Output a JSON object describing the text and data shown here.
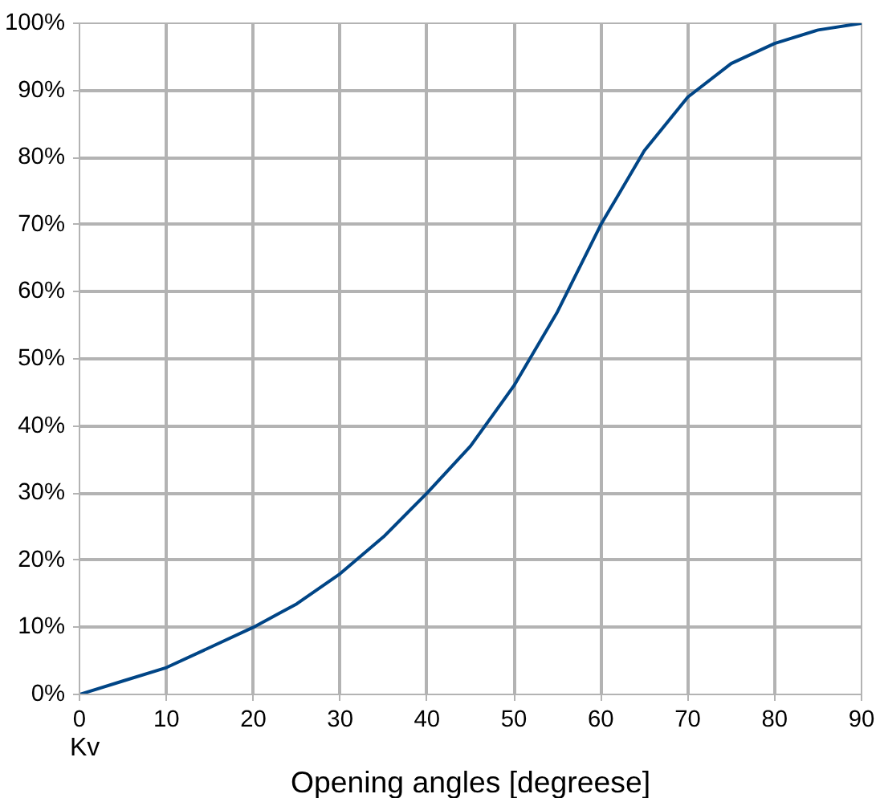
{
  "chart_data": {
    "type": "line",
    "xlabel": "Opening angles [degreese]",
    "annotations": [
      "Kv"
    ],
    "x": [
      0,
      5,
      10,
      15,
      20,
      25,
      30,
      35,
      40,
      45,
      50,
      55,
      60,
      65,
      70,
      75,
      80,
      85,
      90
    ],
    "series": [
      {
        "color": "#004586",
        "values": [
          0,
          2,
          4,
          7,
          10,
          13.5,
          18,
          23.5,
          30,
          37,
          46,
          57,
          70,
          81,
          89,
          94,
          97,
          99,
          100
        ]
      }
    ],
    "xlim": [
      0,
      90
    ],
    "ylim": [
      0,
      100
    ],
    "xticks": [
      0,
      10,
      20,
      30,
      40,
      50,
      60,
      70,
      80,
      90
    ],
    "yticks": [
      {
        "value": 0,
        "label": "0%"
      },
      {
        "value": 10,
        "label": "10%"
      },
      {
        "value": 20,
        "label": "20%"
      },
      {
        "value": 30,
        "label": "30%"
      },
      {
        "value": 40,
        "label": "40%"
      },
      {
        "value": 50,
        "label": "50%"
      },
      {
        "value": 60,
        "label": "60%"
      },
      {
        "value": 70,
        "label": "70%"
      },
      {
        "value": 80,
        "label": "80%"
      },
      {
        "value": 90,
        "label": "90%"
      },
      {
        "value": 100,
        "label": "100%"
      }
    ],
    "grid": true,
    "marker": "none",
    "line_style": "solid"
  }
}
